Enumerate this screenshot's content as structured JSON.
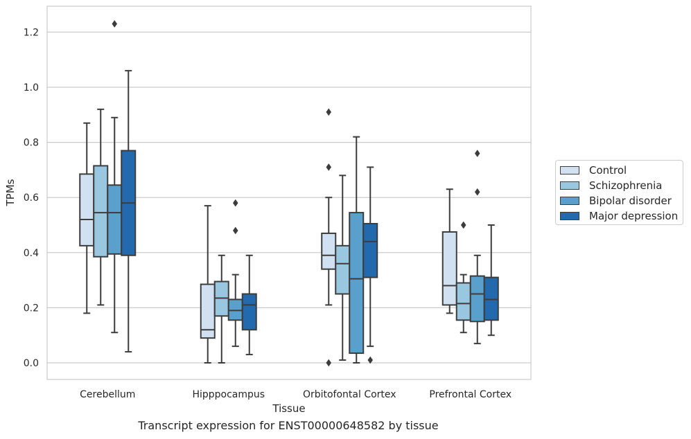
{
  "chart_data": {
    "type": "box",
    "caption": "Transcript expression for ENST00000648582 by tissue",
    "xlabel": "Tissue",
    "ylabel": "TPMs",
    "ylim": [
      -0.06,
      1.29
    ],
    "yticks": [
      "0.0",
      "0.2",
      "0.4",
      "0.6",
      "0.8",
      "1.0",
      "1.2"
    ],
    "grid": "horizontal",
    "legend_position": "right",
    "categories": [
      "Cerebellum",
      "Hipppocampus",
      "Orbitofontal Cortex",
      "Prefrontal Cortex"
    ],
    "series": [
      {
        "name": "Control",
        "color": "#d2e1f1",
        "boxes": [
          {
            "q1": 0.425,
            "median": 0.52,
            "q3": 0.685,
            "whisker_low": 0.18,
            "whisker_high": 0.87,
            "outliers": []
          },
          {
            "q1": 0.09,
            "median": 0.12,
            "q3": 0.285,
            "whisker_low": 0.0,
            "whisker_high": 0.57,
            "outliers": []
          },
          {
            "q1": 0.34,
            "median": 0.39,
            "q3": 0.47,
            "whisker_low": 0.21,
            "whisker_high": 0.6,
            "outliers": [
              0.0,
              0.71,
              0.91
            ]
          },
          {
            "q1": 0.21,
            "median": 0.28,
            "q3": 0.475,
            "whisker_low": 0.18,
            "whisker_high": 0.63,
            "outliers": []
          }
        ]
      },
      {
        "name": "Schizophrenia",
        "color": "#9ac7e0",
        "boxes": [
          {
            "q1": 0.385,
            "median": 0.545,
            "q3": 0.715,
            "whisker_low": 0.21,
            "whisker_high": 0.92,
            "outliers": []
          },
          {
            "q1": 0.17,
            "median": 0.235,
            "q3": 0.295,
            "whisker_low": 0.0,
            "whisker_high": 0.39,
            "outliers": []
          },
          {
            "q1": 0.25,
            "median": 0.36,
            "q3": 0.425,
            "whisker_low": 0.01,
            "whisker_high": 0.68,
            "outliers": []
          },
          {
            "q1": 0.155,
            "median": 0.215,
            "q3": 0.29,
            "whisker_low": 0.11,
            "whisker_high": 0.32,
            "outliers": [
              0.5
            ]
          }
        ]
      },
      {
        "name": "Bipolar disorder",
        "color": "#5aa0cd",
        "boxes": [
          {
            "q1": 0.395,
            "median": 0.545,
            "q3": 0.645,
            "whisker_low": 0.11,
            "whisker_high": 0.89,
            "outliers": [
              1.23
            ]
          },
          {
            "q1": 0.155,
            "median": 0.19,
            "q3": 0.23,
            "whisker_low": 0.06,
            "whisker_high": 0.32,
            "outliers": [
              0.48,
              0.58
            ]
          },
          {
            "q1": 0.035,
            "median": 0.305,
            "q3": 0.545,
            "whisker_low": 0.0,
            "whisker_high": 0.82,
            "outliers": []
          },
          {
            "q1": 0.15,
            "median": 0.25,
            "q3": 0.315,
            "whisker_low": 0.07,
            "whisker_high": 0.39,
            "outliers": [
              0.62,
              0.76
            ]
          }
        ]
      },
      {
        "name": "Major depression",
        "color": "#2369ad",
        "boxes": [
          {
            "q1": 0.39,
            "median": 0.58,
            "q3": 0.77,
            "whisker_low": 0.04,
            "whisker_high": 1.06,
            "outliers": []
          },
          {
            "q1": 0.12,
            "median": 0.21,
            "q3": 0.25,
            "whisker_low": 0.03,
            "whisker_high": 0.39,
            "outliers": []
          },
          {
            "q1": 0.31,
            "median": 0.44,
            "q3": 0.505,
            "whisker_low": 0.06,
            "whisker_high": 0.71,
            "outliers": [
              0.01
            ]
          },
          {
            "q1": 0.155,
            "median": 0.23,
            "q3": 0.31,
            "whisker_low": 0.1,
            "whisker_high": 0.5,
            "outliers": []
          }
        ]
      }
    ]
  }
}
